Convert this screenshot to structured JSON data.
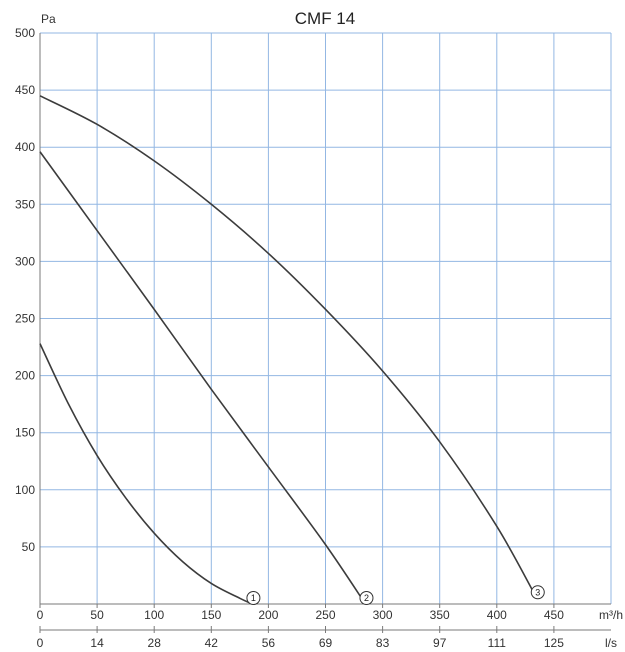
{
  "chart_data": {
    "type": "line",
    "title": "CMF 14",
    "ylabel": "Pa",
    "xlabel": "m³/h",
    "x2label": "l/s",
    "ylim": [
      0,
      500
    ],
    "xlim": [
      0,
      500
    ],
    "y_ticks": [
      50,
      100,
      150,
      200,
      250,
      300,
      350,
      400,
      450,
      500
    ],
    "x_ticks": [
      0,
      50,
      100,
      150,
      200,
      250,
      300,
      350,
      400,
      450
    ],
    "x2_ticks": [
      "0",
      "14",
      "28",
      "42",
      "56",
      "69",
      "83",
      "97",
      "111",
      "125"
    ],
    "grid": true,
    "series": [
      {
        "name": "1",
        "x": [
          0,
          25,
          50,
          75,
          100,
          125,
          150,
          175,
          186
        ],
        "y": [
          228,
          175,
          130,
          93,
          62,
          37,
          18,
          5,
          0
        ]
      },
      {
        "name": "2",
        "x": [
          0,
          50,
          100,
          150,
          200,
          250,
          285
        ],
        "y": [
          396,
          327,
          258,
          188,
          120,
          52,
          0
        ]
      },
      {
        "name": "3",
        "x": [
          0,
          50,
          100,
          150,
          200,
          250,
          300,
          350,
          400,
          435
        ],
        "y": [
          445,
          420,
          388,
          350,
          307,
          258,
          204,
          142,
          68,
          5
        ]
      }
    ]
  }
}
